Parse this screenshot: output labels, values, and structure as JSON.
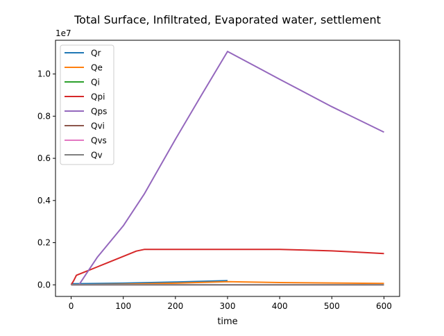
{
  "chart_data": {
    "type": "line",
    "title": "Total Surface, Infiltrated, Evaporated water, settlement",
    "xlabel": "time",
    "ylabel": "",
    "y_offset_label": "1e7",
    "xlim": [
      -30,
      630
    ],
    "ylim": [
      -0.055,
      1.16
    ],
    "x_ticks": [
      0,
      100,
      200,
      300,
      400,
      500,
      600
    ],
    "x_tick_labels": [
      "0",
      "100",
      "200",
      "300",
      "400",
      "500",
      "600"
    ],
    "y_ticks": [
      0.0,
      0.2,
      0.4,
      0.6,
      0.8,
      1.0
    ],
    "y_tick_labels": [
      "0.0",
      "0.2",
      "0.4",
      "0.6",
      "0.8",
      "1.0"
    ],
    "grid": false,
    "legend_position": "top-left",
    "series": [
      {
        "name": "Qr",
        "color": "#1f77b4",
        "x": [
          0,
          100,
          200,
          300
        ],
        "y": [
          0.005,
          0.008,
          0.013,
          0.02
        ]
      },
      {
        "name": "Qe",
        "color": "#ff7f0e",
        "x": [
          0,
          100,
          200,
          300,
          400,
          500,
          600
        ],
        "y": [
          0.0,
          0.003,
          0.008,
          0.015,
          0.011,
          0.009,
          0.007
        ]
      },
      {
        "name": "Qi",
        "color": "#2ca02c",
        "x": [
          0,
          600
        ],
        "y": [
          0.0,
          0.0
        ]
      },
      {
        "name": "Qpi",
        "color": "#d62728",
        "x": [
          0,
          5,
          10,
          15,
          50,
          100,
          125,
          140,
          200,
          300,
          400,
          450,
          500,
          550,
          600
        ],
        "y": [
          0.0,
          0.02,
          0.045,
          0.05,
          0.085,
          0.135,
          0.16,
          0.168,
          0.168,
          0.168,
          0.168,
          0.165,
          0.161,
          0.155,
          0.148
        ]
      },
      {
        "name": "Qps",
        "color": "#9467bd",
        "x": [
          15,
          50,
          100,
          140,
          200,
          250,
          300,
          400,
          500,
          600
        ],
        "y": [
          0.0,
          0.13,
          0.28,
          0.43,
          0.69,
          0.9,
          1.107,
          0.975,
          0.845,
          0.724
        ]
      },
      {
        "name": "Qvi",
        "color": "#8c564b",
        "x": [
          0,
          600
        ],
        "y": [
          0.0,
          0.0
        ]
      },
      {
        "name": "Qvs",
        "color": "#e377c2",
        "x": [
          0,
          600
        ],
        "y": [
          0.0,
          0.0
        ]
      },
      {
        "name": "Qv",
        "color": "#7f7f7f",
        "x": [
          0,
          600
        ],
        "y": [
          0.0,
          0.0
        ]
      }
    ]
  }
}
